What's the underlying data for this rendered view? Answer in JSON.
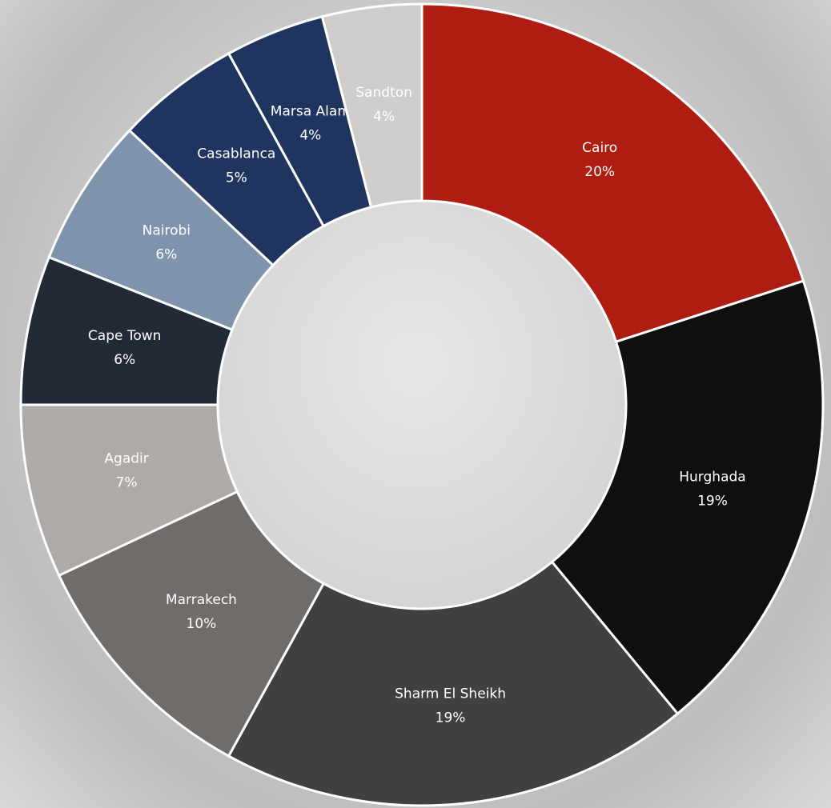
{
  "chart_data": {
    "type": "pie",
    "categories": [
      "Cairo",
      "Hurghada",
      "Sharm El Sheikh",
      "Marrakech",
      "Agadir",
      "Cape Town",
      "Nairobi",
      "Casablanca",
      "Marsa Alam",
      "Sandton"
    ],
    "values": [
      20,
      19,
      19,
      10,
      7,
      6,
      6,
      5,
      4,
      4
    ],
    "value_labels": [
      "20%",
      "19%",
      "19%",
      "10%",
      "7%",
      "6%",
      "6%",
      "5%",
      "4%",
      "4%"
    ],
    "colors": [
      "#ae1c12",
      "#0f0f0f",
      "#404040",
      "#706c6a",
      "#aeaaa8",
      "#232a37",
      "#7f93ad",
      "#1f3560",
      "#1f3560",
      "#cfcdcc"
    ]
  }
}
